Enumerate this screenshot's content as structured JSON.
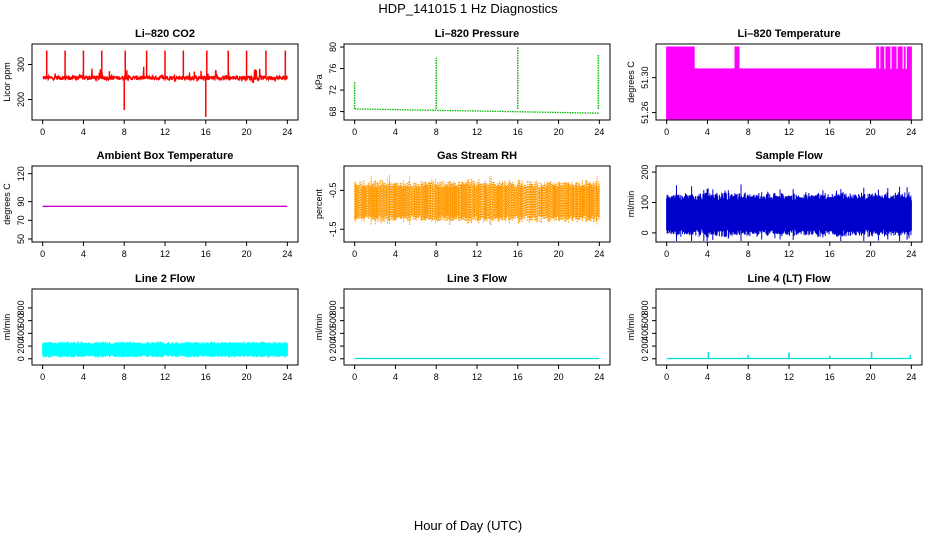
{
  "figure": {
    "title": "HDP_141015  1 Hz Diagnostics",
    "xlabel": "Hour of Day (UTC)"
  },
  "chart_data": [
    {
      "type": "line",
      "title": "Li–820 CO2",
      "ylabel": "Licor ppm",
      "color": "#ff0000",
      "xlim": [
        0,
        24
      ],
      "ylim": [
        150,
        350
      ],
      "xticks": [
        "0",
        "4",
        "8",
        "12",
        "16",
        "20",
        "24"
      ],
      "yticks": [
        "200",
        "300"
      ],
      "baseline": 262,
      "noise": 6,
      "spikes": [
        {
          "x": 0.4,
          "y": 340
        },
        {
          "x": 2.2,
          "y": 340
        },
        {
          "x": 4.0,
          "y": 340
        },
        {
          "x": 5.8,
          "y": 340
        },
        {
          "x": 8.0,
          "y": 170
        },
        {
          "x": 8.1,
          "y": 340
        },
        {
          "x": 10.2,
          "y": 340
        },
        {
          "x": 12.0,
          "y": 340
        },
        {
          "x": 13.8,
          "y": 340
        },
        {
          "x": 16.0,
          "y": 150
        },
        {
          "x": 16.1,
          "y": 340
        },
        {
          "x": 18.2,
          "y": 340
        },
        {
          "x": 20.0,
          "y": 340
        },
        {
          "x": 21.9,
          "y": 340
        },
        {
          "x": 23.8,
          "y": 340
        }
      ]
    },
    {
      "type": "line",
      "title": "Li–820 Pressure",
      "ylabel": "kPa",
      "color": "#00bb00",
      "dotted": true,
      "xlim": [
        0,
        24
      ],
      "ylim": [
        67,
        80
      ],
      "xticks": [
        "0",
        "4",
        "8",
        "12",
        "16",
        "20",
        "24"
      ],
      "yticks": [
        "68",
        "72",
        "76",
        "80"
      ],
      "line": [
        [
          0,
          68.5
        ],
        [
          6,
          68.3
        ],
        [
          12,
          68.1
        ],
        [
          18,
          67.9
        ],
        [
          24,
          67.7
        ]
      ],
      "spikes": [
        {
          "x": 0.0,
          "y": 73.5
        },
        {
          "x": 8.0,
          "y": 78
        },
        {
          "x": 16.0,
          "y": 80
        },
        {
          "x": 23.9,
          "y": 78.5
        }
      ]
    },
    {
      "type": "area",
      "title": "Li–820 Temperature",
      "ylabel": "degrees C",
      "color": "#ff00ff",
      "xlim": [
        0,
        24
      ],
      "ylim": [
        51.255,
        51.335
      ],
      "xticks": [
        "0",
        "4",
        "8",
        "12",
        "16",
        "20",
        "24"
      ],
      "yticks": [
        "51.26",
        "51.30"
      ],
      "segments": [
        [
          0,
          2.7,
          51.335
        ],
        [
          2.7,
          6.7,
          51.31
        ],
        [
          6.7,
          7.1,
          51.335
        ],
        [
          7.1,
          20.6,
          51.31
        ],
        [
          20.6,
          24,
          51.335
        ]
      ]
    },
    {
      "type": "line",
      "title": "Ambient Box Temperature",
      "ylabel": "degrees C",
      "color": "#cc00cc",
      "xlim": [
        0,
        24
      ],
      "ylim": [
        50,
        125
      ],
      "xticks": [
        "0",
        "4",
        "8",
        "12",
        "16",
        "20",
        "24"
      ],
      "yticks": [
        "50",
        "70",
        "90",
        "120"
      ],
      "line": [
        [
          0,
          85
        ],
        [
          24,
          85
        ]
      ]
    },
    {
      "type": "band",
      "title": "Gas Stream RH",
      "ylabel": "percent",
      "color": "#ff9900",
      "dotted": true,
      "xlim": [
        0,
        24
      ],
      "ylim": [
        -1.75,
        0.05
      ],
      "xticks": [
        "0",
        "4",
        "8",
        "12",
        "16",
        "20",
        "24"
      ],
      "yticks": [
        "-1.5",
        "-0.5"
      ],
      "center": -0.78,
      "half_width": 0.55,
      "max_excursion": 0.72
    },
    {
      "type": "band",
      "title": "Sample Flow",
      "ylabel": "ml/min",
      "color": "#0000cc",
      "xlim": [
        0,
        24
      ],
      "ylim": [
        -20,
        210
      ],
      "xticks": [
        "0",
        "4",
        "8",
        "12",
        "16",
        "20",
        "24"
      ],
      "yticks": [
        "0",
        "100",
        "200"
      ],
      "center": 60,
      "half_width": 75,
      "max_excursion": 110
    },
    {
      "type": "band",
      "title": "Line 2 Flow",
      "ylabel": "ml/min",
      "color": "#00ffff",
      "xlim": [
        0,
        24
      ],
      "ylim": [
        -50,
        1050
      ],
      "xticks": [
        "0",
        "4",
        "8",
        "12",
        "16",
        "20",
        "24"
      ],
      "yticks": [
        "0",
        "200",
        "400",
        "600",
        "800"
      ],
      "center": 145,
      "half_width": 130,
      "max_excursion": 140
    },
    {
      "type": "line",
      "title": "Line 3 Flow",
      "ylabel": "ml/min",
      "color": "#00dddd",
      "xlim": [
        0,
        24
      ],
      "ylim": [
        -50,
        1050
      ],
      "xticks": [
        "0",
        "4",
        "8",
        "12",
        "16",
        "20",
        "24"
      ],
      "yticks": [
        "0",
        "200",
        "400",
        "600",
        "800"
      ],
      "line": [
        [
          0,
          5
        ],
        [
          24,
          5
        ]
      ]
    },
    {
      "type": "line",
      "title": "Line 4 (LT) Flow",
      "ylabel": "ml/min",
      "color": "#00dddd",
      "xlim": [
        0,
        24
      ],
      "ylim": [
        -50,
        1050
      ],
      "xticks": [
        "0",
        "4",
        "8",
        "12",
        "16",
        "20",
        "24"
      ],
      "yticks": [
        "0",
        "200",
        "400",
        "600",
        "800"
      ],
      "line": [
        [
          0,
          5
        ],
        [
          24,
          5
        ]
      ],
      "spikes": [
        {
          "x": 4.1,
          "y": 110
        },
        {
          "x": 8.0,
          "y": 60
        },
        {
          "x": 12.0,
          "y": 100
        },
        {
          "x": 16.0,
          "y": 50
        },
        {
          "x": 20.1,
          "y": 110
        },
        {
          "x": 23.9,
          "y": 60
        }
      ]
    }
  ]
}
